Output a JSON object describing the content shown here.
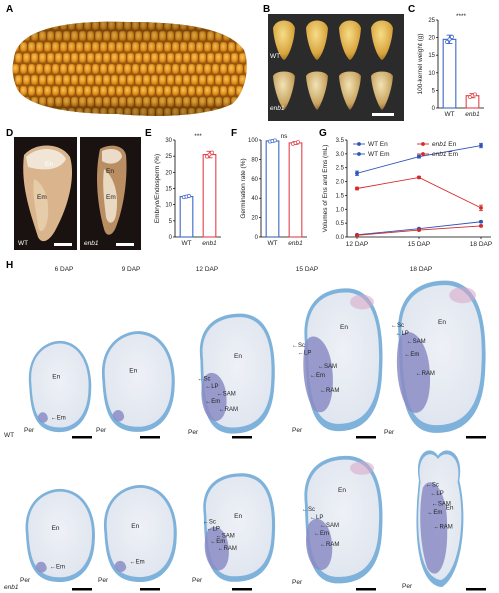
{
  "panels": {
    "A": "A",
    "B": "B",
    "C": "C",
    "D": "D",
    "E": "E",
    "F": "F",
    "G": "G",
    "H": "H"
  },
  "genotypes": {
    "wt": "WT",
    "mutant": "enb1"
  },
  "panelB": {
    "wt_label": "WT",
    "mutant_label": "enb1"
  },
  "panelD": {
    "wt_label": "WT",
    "mutant_label": "enb1",
    "wt_en": "En",
    "wt_em": "Em",
    "mut_en": "En",
    "mut_em": "Em"
  },
  "chart_data": [
    {
      "panel": "C",
      "type": "bar",
      "categories": [
        "WT",
        "enb1"
      ],
      "values": [
        19.5,
        3.5
      ],
      "errors": [
        1.2,
        0.6
      ],
      "ylabel": "100-kernel weight (g)",
      "ylim": [
        0,
        25
      ],
      "yticks": [
        0,
        5,
        10,
        15,
        20,
        25
      ],
      "significance": "****",
      "colors": [
        "#3b67c9",
        "#e0424b"
      ]
    },
    {
      "panel": "E",
      "type": "bar",
      "categories": [
        "WT",
        "enb1"
      ],
      "values": [
        12.5,
        25.5
      ],
      "errors": [
        0.3,
        1.0
      ],
      "ylabel": "Embryo/Endosperm (%)",
      "ylim": [
        0,
        30
      ],
      "yticks": [
        0,
        5,
        10,
        15,
        20,
        25,
        30
      ],
      "significance": "***",
      "colors": [
        "#3b67c9",
        "#e0424b"
      ]
    },
    {
      "panel": "F",
      "type": "bar",
      "categories": [
        "WT",
        "enb1"
      ],
      "values": [
        99,
        97
      ],
      "errors": [
        1.0,
        1.5
      ],
      "ylabel": "Germination rate (%)",
      "ylim": [
        0,
        100
      ],
      "yticks": [
        0,
        20,
        40,
        60,
        80,
        100
      ],
      "significance": "ns",
      "colors": [
        "#3b67c9",
        "#e0424b"
      ]
    },
    {
      "panel": "G",
      "type": "line",
      "x": [
        "12 DAP",
        "15 DAP",
        "18 DAP"
      ],
      "ylabel": "Volumes of Ens and Ems (mL)",
      "ylim": [
        0,
        3.5
      ],
      "yticks": [
        0.0,
        0.5,
        1.0,
        1.5,
        2.0,
        2.5,
        3.0,
        3.5
      ],
      "series": [
        {
          "name": "WT En",
          "values": [
            2.3,
            2.9,
            3.3
          ],
          "errors": [
            0.08,
            0.05,
            0.08
          ],
          "color": "#2f55b8"
        },
        {
          "name": "enb1 En",
          "values": [
            1.75,
            2.15,
            1.05
          ],
          "errors": [
            0.05,
            0.04,
            0.1
          ],
          "color": "#d42a2a"
        },
        {
          "name": "WT Em",
          "values": [
            0.08,
            0.3,
            0.55
          ],
          "errors": [
            0.02,
            0.02,
            0.03
          ],
          "color": "#2f55b8"
        },
        {
          "name": "enb1 Em",
          "values": [
            0.06,
            0.25,
            0.4
          ],
          "errors": [
            0.02,
            0.02,
            0.03
          ],
          "color": "#d42a2a"
        }
      ]
    }
  ],
  "panelH": {
    "columns": [
      "6 DAP",
      "9 DAP",
      "12 DAP",
      "15 DAP",
      "18 DAP"
    ],
    "row_wt": "WT",
    "row_mut": "enb1",
    "labels": {
      "en": "En",
      "em": "Em",
      "per": "Per",
      "sc": "Sc",
      "lp": "LP",
      "sam": "SAM",
      "ram": "RAM"
    }
  }
}
